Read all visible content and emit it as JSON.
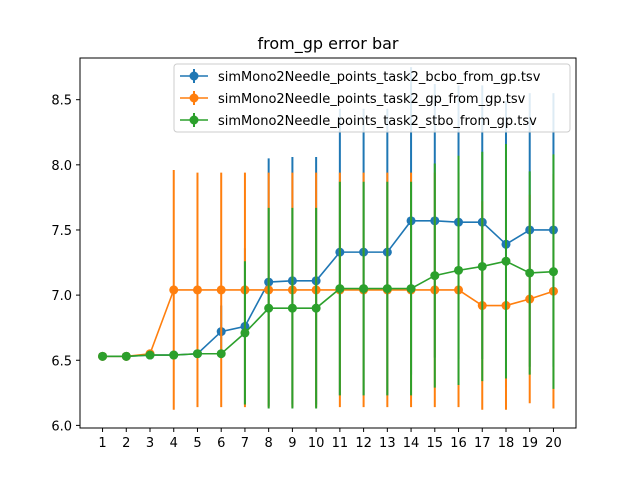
{
  "chart_data": {
    "type": "line",
    "title": "from_gp error bar",
    "xlabel": "",
    "ylabel": "",
    "x": [
      1,
      2,
      3,
      4,
      5,
      6,
      7,
      8,
      9,
      10,
      11,
      12,
      13,
      14,
      15,
      16,
      17,
      18,
      19,
      20
    ],
    "xlim": [
      0.05,
      20.95
    ],
    "ylim": [
      5.98,
      8.82
    ],
    "yticks": [
      6.0,
      6.5,
      7.0,
      7.5,
      8.0,
      8.5
    ],
    "ytick_labels": [
      "6.0",
      "6.5",
      "7.0",
      "7.5",
      "8.0",
      "8.5"
    ],
    "grid": false,
    "legend_position": "top-right",
    "series": [
      {
        "name": "simMono2Needle_points_task2_bcbo_from_gp.tsv",
        "color": "#1f77b4",
        "values": [
          6.53,
          6.53,
          6.54,
          6.54,
          6.55,
          6.72,
          6.76,
          7.1,
          7.11,
          7.11,
          7.33,
          7.33,
          7.33,
          7.57,
          7.57,
          7.56,
          7.56,
          7.39,
          7.5,
          7.5
        ],
        "errors": [
          0.03,
          0.03,
          0.02,
          0.02,
          0.02,
          0.2,
          0.6,
          0.95,
          0.95,
          0.95,
          1.1,
          1.1,
          1.1,
          1.18,
          1.05,
          1.05,
          1.05,
          1.1,
          1.05,
          1.05
        ]
      },
      {
        "name": "simMono2Needle_points_task2_gp_from_gp.tsv",
        "color": "#ff7f0e",
        "values": [
          6.53,
          6.53,
          6.55,
          7.04,
          7.04,
          7.04,
          7.04,
          7.04,
          7.04,
          7.04,
          7.04,
          7.04,
          7.04,
          7.04,
          7.04,
          7.04,
          6.92,
          6.92,
          6.97,
          7.03
        ],
        "errors": [
          0.02,
          0.02,
          0.02,
          0.92,
          0.9,
          0.9,
          0.9,
          0.9,
          0.9,
          0.9,
          0.9,
          0.9,
          0.9,
          0.9,
          0.9,
          0.9,
          0.8,
          0.8,
          0.8,
          0.9
        ]
      },
      {
        "name": "simMono2Needle_points_task2_stbo_from_gp.tsv",
        "color": "#2ca02c",
        "values": [
          6.53,
          6.53,
          6.54,
          6.54,
          6.55,
          6.55,
          6.71,
          6.9,
          6.9,
          6.9,
          7.05,
          7.05,
          7.05,
          7.05,
          7.15,
          7.19,
          7.22,
          7.26,
          7.17,
          7.18
        ],
        "errors": [
          0.02,
          0.02,
          0.02,
          0.02,
          0.02,
          0.02,
          0.55,
          0.77,
          0.77,
          0.77,
          0.82,
          0.82,
          0.82,
          0.82,
          0.86,
          0.88,
          0.88,
          0.9,
          0.78,
          0.9
        ]
      }
    ]
  }
}
